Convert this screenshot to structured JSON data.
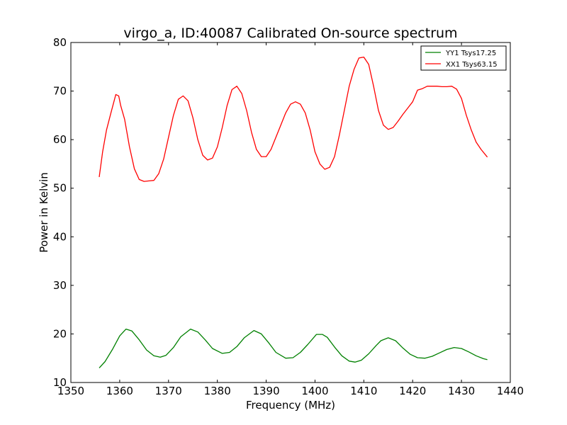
{
  "chart_data": {
    "type": "line",
    "title": "virgo_a, ID:40087 Calibrated On-source spectrum",
    "xlabel": "Frequency (MHz)",
    "ylabel": "Power in Kelvin",
    "xlim": [
      1350,
      1440
    ],
    "ylim": [
      10,
      80
    ],
    "xticks": [
      1350,
      1360,
      1370,
      1380,
      1390,
      1400,
      1410,
      1420,
      1430,
      1440
    ],
    "yticks": [
      10,
      20,
      30,
      40,
      50,
      60,
      70,
      80
    ],
    "grid": false,
    "legend_position": "top-right",
    "series": [
      {
        "name": "YY1 Tsys17.25",
        "color": "#008000",
        "x": [
          1355.8,
          1357,
          1358.5,
          1360,
          1361.3,
          1362.5,
          1364,
          1365.5,
          1367,
          1368.3,
          1369.5,
          1371,
          1372.5,
          1374.5,
          1376,
          1377.5,
          1379,
          1381,
          1382.5,
          1384,
          1385.5,
          1387.5,
          1389,
          1390.5,
          1392,
          1394,
          1395.5,
          1397,
          1398.5,
          1400.3,
          1401.5,
          1402.5,
          1404,
          1405.5,
          1407,
          1408.2,
          1409.5,
          1411,
          1412.5,
          1413.5,
          1415,
          1416.5,
          1418,
          1419.5,
          1421,
          1422.5,
          1424,
          1425.5,
          1427,
          1428.5,
          1430,
          1431.5,
          1433,
          1434.5,
          1435.3
        ],
        "y": [
          13.0,
          14.3,
          16.8,
          19.6,
          21.0,
          20.6,
          18.8,
          16.7,
          15.5,
          15.2,
          15.6,
          17.2,
          19.4,
          21.0,
          20.4,
          18.8,
          17.0,
          16.0,
          16.2,
          17.4,
          19.2,
          20.7,
          20.0,
          18.2,
          16.2,
          15.0,
          15.1,
          16.2,
          17.8,
          19.9,
          19.9,
          19.3,
          17.3,
          15.5,
          14.4,
          14.2,
          14.6,
          15.9,
          17.6,
          18.6,
          19.2,
          18.6,
          17.1,
          15.8,
          15.1,
          15.0,
          15.4,
          16.1,
          16.8,
          17.2,
          17.0,
          16.3,
          15.5,
          14.9,
          14.7
        ]
      },
      {
        "name": "XX1 Tsys63.15",
        "color": "#ff0000",
        "x": [
          1355.8,
          1356.5,
          1357.3,
          1358.2,
          1359.2,
          1359.8,
          1360.2,
          1361,
          1362,
          1363,
          1364,
          1365,
          1366,
          1367,
          1368,
          1369,
          1370,
          1371,
          1372,
          1373,
          1374,
          1375,
          1376,
          1377,
          1378,
          1379,
          1380,
          1381,
          1382,
          1383,
          1384,
          1385,
          1386,
          1387,
          1388,
          1389,
          1390,
          1391,
          1392,
          1393,
          1394,
          1395,
          1396,
          1397,
          1398,
          1399,
          1400,
          1401,
          1402,
          1403,
          1404,
          1405,
          1406,
          1407,
          1408,
          1409,
          1410,
          1411,
          1412,
          1413,
          1414,
          1415,
          1416,
          1417,
          1418,
          1419,
          1420,
          1421,
          1422,
          1423,
          1424,
          1425,
          1426,
          1427,
          1428,
          1429,
          1430,
          1431,
          1432,
          1433,
          1434,
          1435.3
        ],
        "y": [
          52.3,
          57.5,
          62.0,
          65.5,
          69.3,
          69.0,
          67.0,
          64.2,
          58.5,
          54.0,
          51.8,
          51.4,
          51.5,
          51.6,
          53.0,
          56.0,
          60.5,
          65.0,
          68.3,
          69.0,
          68.0,
          64.5,
          60.0,
          56.8,
          55.8,
          56.2,
          58.5,
          62.5,
          67.0,
          70.3,
          71.0,
          69.5,
          66.0,
          61.5,
          58.0,
          56.5,
          56.5,
          58.0,
          60.5,
          63.0,
          65.5,
          67.3,
          67.8,
          67.3,
          65.5,
          62.0,
          57.5,
          55.0,
          53.9,
          54.3,
          56.5,
          61.0,
          66.0,
          71.0,
          74.5,
          76.8,
          77.0,
          75.5,
          71.0,
          66.0,
          63.0,
          62.1,
          62.5,
          63.8,
          65.2,
          66.5,
          67.8,
          70.2,
          70.5,
          71.0,
          71.0,
          71.0,
          70.9,
          70.9,
          71.0,
          70.4,
          68.5,
          65.0,
          62.0,
          59.5,
          58.0,
          56.4
        ]
      }
    ]
  }
}
